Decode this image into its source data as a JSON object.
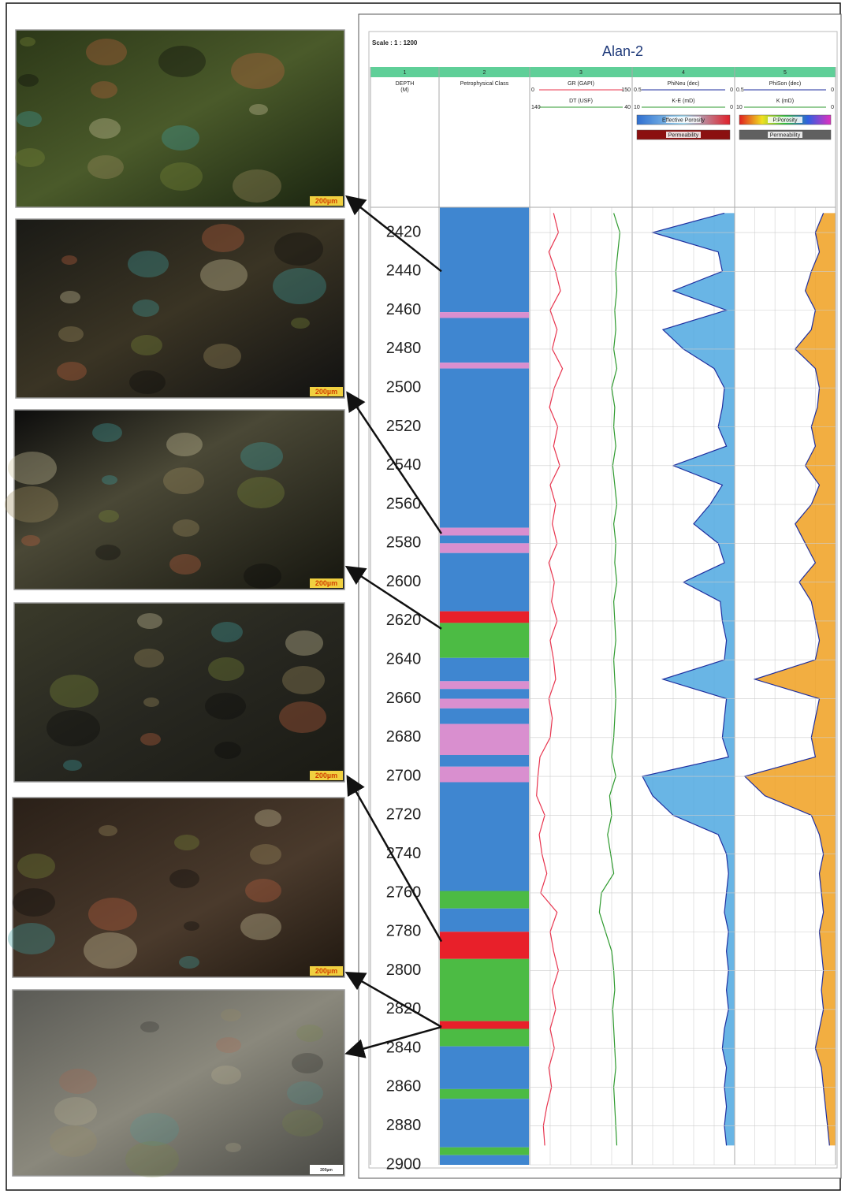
{
  "chart_data": {
    "type": "well-log",
    "title": "Alan-2",
    "scale_label": "Scale : 1 : 1200",
    "ylim": [
      2407,
      2900
    ],
    "yticks": [
      2420,
      2440,
      2460,
      2480,
      2500,
      2520,
      2540,
      2560,
      2580,
      2600,
      2620,
      2640,
      2660,
      2680,
      2700,
      2720,
      2740,
      2760,
      2780,
      2800,
      2820,
      2840,
      2860,
      2880,
      2900
    ],
    "depth": [
      2410,
      2420,
      2430,
      2440,
      2450,
      2460,
      2470,
      2480,
      2490,
      2500,
      2510,
      2520,
      2530,
      2540,
      2550,
      2560,
      2570,
      2580,
      2590,
      2600,
      2610,
      2620,
      2630,
      2640,
      2650,
      2660,
      2670,
      2680,
      2690,
      2700,
      2710,
      2720,
      2730,
      2740,
      2750,
      2760,
      2770,
      2780,
      2790,
      2800,
      2810,
      2820,
      2830,
      2840,
      2850,
      2860,
      2870,
      2880,
      2890
    ],
    "tracks": [
      {
        "number": 1,
        "title": [
          "DEPTH",
          "(M)"
        ]
      },
      {
        "number": 2,
        "title": [
          "Petrophysical Class"
        ],
        "classes": {
          "boundaries": [
            2407,
            2461,
            2464,
            2487,
            2490,
            2572,
            2576,
            2580,
            2585,
            2615,
            2621,
            2639,
            2651,
            2655,
            2660,
            2665,
            2673,
            2689,
            2695,
            2703,
            2759,
            2768,
            2780,
            2794,
            2826,
            2830,
            2839,
            2861,
            2866,
            2891,
            2895,
            2900
          ],
          "colors": [
            "#3f86d0",
            "#d98fcf",
            "#3f86d0",
            "#d98fcf",
            "#3f86d0",
            "#d98fcf",
            "#3f86d0",
            "#d98fcf",
            "#3f86d0",
            "#e8202a",
            "#4cbb44",
            "#3f86d0",
            "#d98fcf",
            "#3f86d0",
            "#d98fcf",
            "#3f86d0",
            "#d98fcf",
            "#3f86d0",
            "#d98fcf",
            "#3f86d0",
            "#4cbb44",
            "#3f86d0",
            "#e8202a",
            "#4cbb44",
            "#e8202a",
            "#4cbb44",
            "#3f86d0",
            "#4cbb44",
            "#3f86d0",
            "#4cbb44",
            "#3f86d0"
          ]
        }
      },
      {
        "number": 3,
        "curves": [
          {
            "name": "GR (GAPI)",
            "color": "#e8344e",
            "xlim": [
              0,
              150
            ],
            "values": [
              35,
              42,
              28,
              38,
              45,
              30,
              40,
              33,
              48,
              36,
              29,
              41,
              35,
              44,
              30,
              38,
              33,
              40,
              28,
              36,
              32,
              40,
              30,
              35,
              38,
              28,
              33,
              30,
              15,
              12,
              10,
              22,
              14,
              18,
              25,
              16,
              40,
              30,
              35,
              42,
              33,
              38,
              30,
              36,
              28,
              32,
              25,
              20,
              22
            ]
          },
          {
            "name": "DT (USF)",
            "color": "#2e9a2e",
            "xlim": [
              140,
              40
            ],
            "values": [
              58,
              52,
              54,
              56,
              55,
              57,
              56,
              58,
              55,
              60,
              57,
              58,
              56,
              59,
              57,
              55,
              58,
              56,
              57,
              55,
              58,
              57,
              56,
              58,
              57,
              56,
              57,
              58,
              60,
              56,
              62,
              60,
              64,
              61,
              58,
              70,
              72,
              66,
              60,
              58,
              57,
              59,
              58,
              57,
              56,
              58,
              57,
              56,
              55
            ]
          }
        ]
      },
      {
        "number": 4,
        "curves": [
          {
            "name": "PhiNeu (dec)",
            "color": "#1f2f9f",
            "fill": "#4fa8e0",
            "xlim": [
              0.5,
              0
            ],
            "values": [
              0.05,
              0.4,
              0.08,
              0.06,
              0.3,
              0.04,
              0.35,
              0.25,
              0.1,
              0.05,
              0.06,
              0.08,
              0.04,
              0.3,
              0.06,
              0.12,
              0.2,
              0.08,
              0.05,
              0.25,
              0.07,
              0.06,
              0.04,
              0.05,
              0.35,
              0.04,
              0.05,
              0.06,
              0.03,
              0.45,
              0.4,
              0.3,
              0.08,
              0.04,
              0.03,
              0.04,
              0.05,
              0.03,
              0.04,
              0.03,
              0.04,
              0.03,
              0.05,
              0.06,
              0.04,
              0.05,
              0.04,
              0.05,
              0.04
            ]
          },
          {
            "name": "K-E (mD)",
            "color": "#2e9a2e",
            "xlim": [
              10,
              0
            ]
          }
        ],
        "legend": [
          {
            "label": "Effective Porosity",
            "color": "#3f86d0"
          },
          {
            "label": "Permeability",
            "color": "#8b1010"
          }
        ]
      },
      {
        "number": 5,
        "curves": [
          {
            "name": "PhiSon (dec)",
            "color": "#1f2f9f",
            "fill": "#f0a020",
            "xlim": [
              0.5,
              0
            ],
            "values": [
              0.06,
              0.1,
              0.08,
              0.12,
              0.15,
              0.1,
              0.12,
              0.2,
              0.1,
              0.08,
              0.09,
              0.12,
              0.1,
              0.15,
              0.08,
              0.12,
              0.2,
              0.15,
              0.1,
              0.18,
              0.12,
              0.1,
              0.08,
              0.1,
              0.4,
              0.08,
              0.1,
              0.12,
              0.1,
              0.45,
              0.35,
              0.12,
              0.08,
              0.06,
              0.08,
              0.07,
              0.06,
              0.08,
              0.07,
              0.06,
              0.07,
              0.06,
              0.08,
              0.1,
              0.07,
              0.06,
              0.05,
              0.04,
              0.03
            ]
          },
          {
            "name": "K (mD)",
            "color": "#2e9a2e",
            "xlim": [
              10,
              0
            ]
          }
        ],
        "legend": [
          {
            "label": "P.Porosity",
            "color": "#e0409a"
          },
          {
            "label": "Permeability",
            "color": "#606060"
          }
        ]
      }
    ],
    "photos": [
      {
        "scale_label": "200µm",
        "arrow_depth": 2440
      },
      {
        "scale_label": "200µm",
        "arrow_depth": 2575
      },
      {
        "scale_label": "200µm",
        "arrow_depth": 2624
      },
      {
        "scale_label": "200µm",
        "arrow_depth": 2785
      },
      {
        "scale_label": "200µm",
        "arrow_depth": 2829
      },
      {
        "scale_label": "200µm",
        "arrow_depth": 2829
      }
    ]
  }
}
